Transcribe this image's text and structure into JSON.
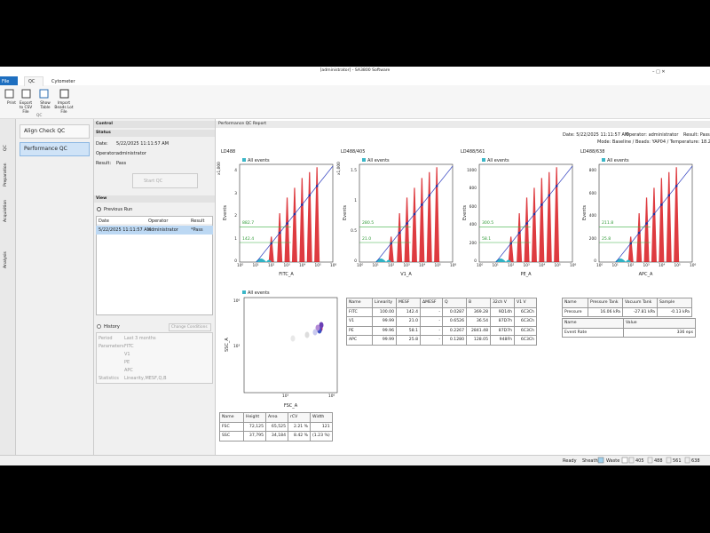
{
  "window": {
    "title": "[administrator] - SA3800 Software"
  },
  "ribbon": {
    "tabs": [
      "File",
      "QC",
      "Cytometer"
    ],
    "buttons": [
      "Print",
      "Export to CSV File",
      "Show Table",
      "Import Beads Lot File"
    ],
    "group": "QC"
  },
  "side_tabs": [
    "QC",
    "Preparation",
    "Acquisition",
    "Analysis"
  ],
  "nav": [
    "Align Check QC",
    "Performance QC"
  ],
  "control": {
    "title": "Control",
    "status": "Status",
    "fields": [
      {
        "label": "Date:",
        "value": "5/22/2025 11:11:57 AM"
      },
      {
        "label": "Operator:",
        "value": "administrator"
      },
      {
        "label": "Result:",
        "value": "Pass"
      }
    ],
    "start": "Start QC"
  },
  "view": {
    "title": "View",
    "previous": "Previous Run",
    "table": {
      "columns": [
        "Date",
        "Operator",
        "Result"
      ],
      "rows": [
        [
          "5/22/2025 11:11:57 AM",
          "administrator",
          "*Pass"
        ]
      ]
    },
    "history": "History",
    "change": "Change Conditions",
    "settings": [
      {
        "label": "Period",
        "values": [
          "Last 3 months"
        ]
      },
      {
        "label": "Parameters",
        "values": [
          "FITC",
          "V1",
          "PE",
          "APC"
        ]
      },
      {
        "label": "Statistics",
        "values": [
          "Linearity,MESF,Q,B"
        ]
      }
    ]
  },
  "report": {
    "title": "Performance QC Report",
    "date": "Date: 5/22/2025 11:11:57 AM",
    "operator": "Operator: administrator",
    "result": "Result: Pass",
    "mode": "Mode: Baseline / Beads: YAP04 / Temperature: 18.2 °C"
  },
  "hist_x_ticks": [
    "10⁰",
    "10¹",
    "10²",
    "10³",
    "10⁴",
    "10⁵",
    "10⁶"
  ],
  "histograms": [
    {
      "laser": "LD488",
      "legend": "All events",
      "x_label": "FITC_A",
      "y_label": "Events",
      "y_scale": "x1,000",
      "y_ticks": [
        "0",
        "1",
        "2",
        "3",
        "4"
      ],
      "markers": [
        "882.7",
        "142.4"
      ]
    },
    {
      "laser": "LD488/405",
      "legend": "All events",
      "x_label": "V1_A",
      "y_label": "Events",
      "y_scale": "x1,000",
      "y_ticks": [
        "0",
        "0.5",
        "1",
        "1.5"
      ],
      "markers": [
        "280.5",
        "21.0"
      ]
    },
    {
      "laser": "LD488/561",
      "legend": "All events",
      "x_label": "PE_A",
      "y_label": "Events",
      "y_ticks": [
        "0",
        "200",
        "400",
        "600",
        "800",
        "1000"
      ],
      "markers": [
        "300.5",
        "58.1"
      ]
    },
    {
      "laser": "LD488/638",
      "legend": "All events",
      "x_label": "APC_A",
      "y_label": "Events",
      "y_ticks": [
        "0",
        "200",
        "400",
        "600",
        "800"
      ],
      "markers": [
        "211.8",
        "25.8"
      ]
    }
  ],
  "scatter": {
    "legend": "All events",
    "x_label": "FSC_A",
    "y_label": "SSC_A",
    "x_ticks": [
      "10³",
      "10⁶"
    ],
    "y_ticks": [
      "10⁶",
      "10³"
    ]
  },
  "linearity_table": [
    [
      "Name",
      "Linearity",
      "MESF",
      "ΔMESF",
      "Q",
      "B",
      "32ch V",
      "V1 V"
    ],
    [
      "FITC",
      "100.00",
      "142.4",
      "-",
      "0.0287",
      "369.28",
      "9D14h",
      "6C3Ch"
    ],
    [
      "V1",
      "99.99",
      "21.0",
      "-",
      "0.6526",
      "36.54",
      "87D7h",
      "6C3Ch"
    ],
    [
      "PE",
      "99.96",
      "58.1",
      "-",
      "0.2267",
      "2841.48",
      "87D7h",
      "6C3Ch"
    ],
    [
      "APC",
      "99.99",
      "25.8",
      "-",
      "0.1280",
      "128.05",
      "948Fh",
      "6C3Ch"
    ]
  ],
  "pressure_table": [
    [
      "Name",
      "Pressure Tank",
      "Vacuum Tank",
      "Sample"
    ],
    [
      "Pressure",
      "16.06 kPa",
      "-27.81 kPa",
      "-0.13 kPa"
    ]
  ],
  "rate_table": [
    [
      "Name",
      "Value"
    ],
    [
      "Event Rate",
      "336 eps"
    ]
  ],
  "peak_table": [
    [
      "Name",
      "Height",
      "Area",
      "rCV",
      "Width"
    ],
    [
      "FSC",
      "72,125",
      "65,525",
      "2.21 %",
      "121"
    ],
    [
      "SSC",
      "37,795",
      "34,184",
      "8.42 %",
      "(1.23 %)"
    ]
  ],
  "status_bar": {
    "state": "Ready",
    "sheath": "Sheath",
    "waste": "Waste",
    "lasers": [
      "405",
      "488",
      "561",
      "638"
    ]
  }
}
